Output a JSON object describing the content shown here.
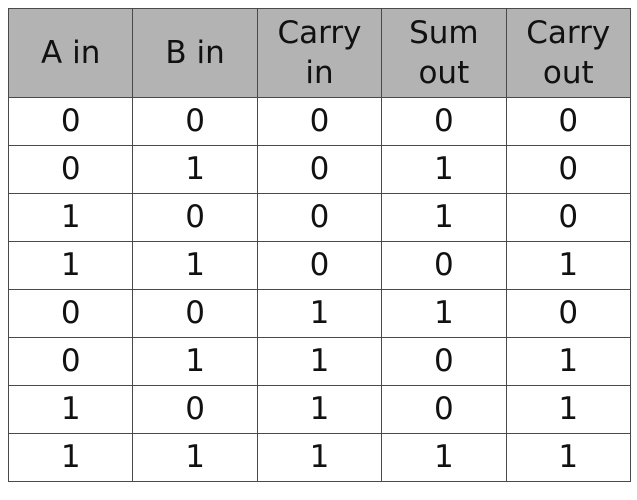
{
  "headers": [
    {
      "lines": [
        "A in"
      ]
    },
    {
      "lines": [
        "B in"
      ]
    },
    {
      "lines": [
        "Carry",
        "in"
      ]
    },
    {
      "lines": [
        "Sum",
        "out"
      ]
    },
    {
      "lines": [
        "Carry",
        "out"
      ]
    }
  ],
  "rows": [
    [
      "0",
      "0",
      "0",
      "0",
      "0"
    ],
    [
      "0",
      "1",
      "0",
      "1",
      "0"
    ],
    [
      "1",
      "0",
      "0",
      "1",
      "0"
    ],
    [
      "1",
      "1",
      "0",
      "0",
      "1"
    ],
    [
      "0",
      "0",
      "1",
      "1",
      "0"
    ],
    [
      "0",
      "1",
      "1",
      "0",
      "1"
    ],
    [
      "1",
      "0",
      "1",
      "0",
      "1"
    ],
    [
      "1",
      "1",
      "1",
      "1",
      "1"
    ]
  ],
  "colors": {
    "header_background": "#b3b3b3",
    "border": "#4a4a4a",
    "text": "#111111"
  }
}
